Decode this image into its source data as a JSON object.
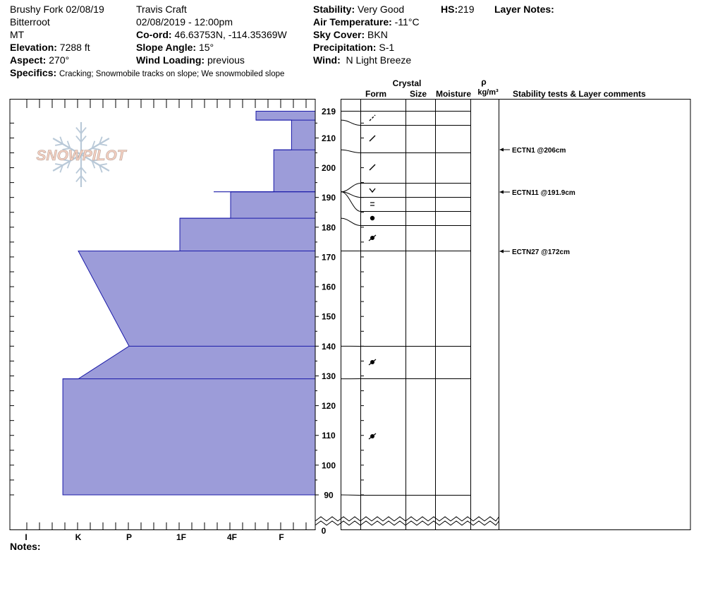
{
  "header": {
    "location": "Brushy Fork 02/08/19",
    "range": "Bitterroot",
    "state": "MT",
    "elevation_label": "Elevation:",
    "elevation_value": "7288 ft",
    "aspect_label": "Aspect:",
    "aspect_value": "270°",
    "specifics_label": "Specifics:",
    "specifics_value": "Cracking;  Snowmobile tracks on slope;  We snowmobiled slope",
    "observer": "Travis  Craft",
    "datetime": "02/08/2019 - 12:00pm",
    "coord_label": "Co-ord:",
    "coord_value": "46.63753N, -114.35369W",
    "slope_label": "Slope Angle:",
    "slope_value": "15°",
    "wind_loading_label": "Wind Loading:",
    "wind_loading_value": "previous",
    "stability_label": "Stability:",
    "stability_value": "Very Good",
    "air_temp_label": "Air Temperature:",
    "air_temp_value": "-11°C",
    "sky_label": "Sky Cover:",
    "sky_value": "BKN",
    "precip_label": "Precipitation:",
    "precip_value": "S-1",
    "wind_label": "Wind:",
    "wind_value": "N Light Breeze",
    "hs_label": "HS:",
    "hs_value": "219",
    "layer_notes_label": "Layer Notes:"
  },
  "columns": {
    "crystal": "Crystal",
    "form": "Form",
    "size": "Size",
    "moisture": "Moisture",
    "rho": "ρ",
    "density_unit": "kg/m³",
    "stability": "Stability tests & Layer comments"
  },
  "logo_text": "SNOWPILOT",
  "notes_label": "Notes:",
  "hardness_labels": [
    "I",
    "K",
    "P",
    "1F",
    "4F",
    "F"
  ],
  "depth_axis": {
    "ticks": [
      219,
      210,
      200,
      190,
      180,
      170,
      160,
      150,
      140,
      130,
      120,
      110,
      100,
      90
    ],
    "zero": "0",
    "min": 90,
    "max": 219
  },
  "layers": [
    {
      "top": 219,
      "bottom": 216,
      "hardness_top": 4.5,
      "hardness_bottom": 4.5
    },
    {
      "top": 216,
      "bottom": 206,
      "hardness_top": 5.3,
      "hardness_bottom": 5.3
    },
    {
      "top": 206,
      "bottom": 191.9,
      "hardness_top": 4.85,
      "hardness_bottom": 4.85
    },
    {
      "top": 191.9,
      "bottom": 183,
      "hardness_top": 4.0,
      "hardness_bottom": 4.0
    },
    {
      "top": 183,
      "bottom": 172,
      "hardness_top": 3.0,
      "hardness_bottom": 3.0
    },
    {
      "top": 172,
      "bottom": 140,
      "hardness_top": 1.0,
      "hardness_bottom": 2.0
    },
    {
      "top": 140,
      "bottom": 129,
      "hardness_top": 2.0,
      "hardness_bottom": 1.0
    },
    {
      "top": 129,
      "bottom": 90,
      "hardness_top": 0.7,
      "hardness_bottom": 0.7
    }
  ],
  "grain_symbols": [
    {
      "depth": 212,
      "symbol": "dash-slash"
    },
    {
      "depth": 209,
      "symbol": "slash"
    },
    {
      "depth": 200,
      "symbol": "slash"
    },
    {
      "depth": 192.5,
      "symbol": "chevron"
    },
    {
      "depth": 188,
      "symbol": "equals"
    },
    {
      "depth": 181,
      "symbol": "dot"
    },
    {
      "depth": 175,
      "symbol": "dot-slash"
    },
    {
      "depth": 134,
      "symbol": "dot-slash"
    },
    {
      "depth": 109,
      "symbol": "dot-slash"
    }
  ],
  "stability_tests": [
    {
      "depth": 206,
      "label": "ECTN1 @206cm"
    },
    {
      "depth": 191.9,
      "label": "ECTN11 @191.9cm"
    },
    {
      "depth": 172,
      "label": "ECTN27 @172cm"
    }
  ],
  "colors": {
    "fill": "#9c9cd9",
    "fill_stroke": "#1a1aa8",
    "logo_text": "#f3cfc0",
    "logo_flake": "#b9c9d8"
  }
}
